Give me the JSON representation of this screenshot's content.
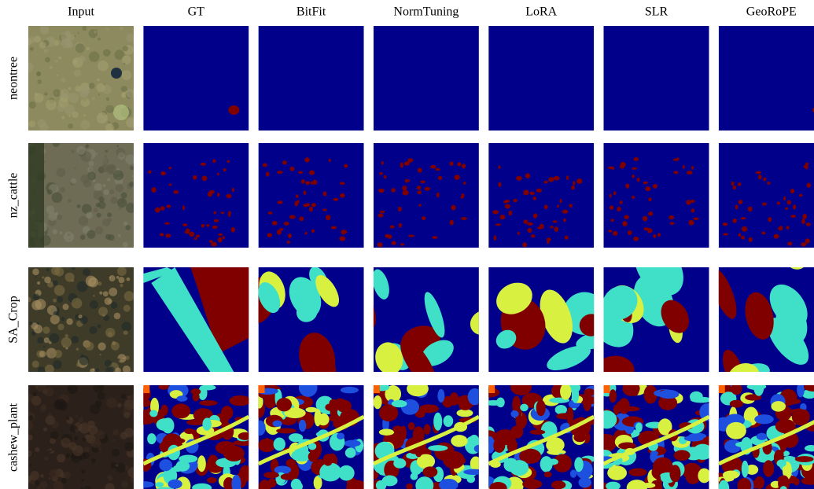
{
  "columns": [
    "Input",
    "GT",
    "BitFit",
    "NormTuning",
    "LoRA",
    "SLR",
    "GeoRoPE"
  ],
  "rows": [
    "neontree",
    "nz_cattle",
    "SA_Crop",
    "cashew_plant"
  ]
}
